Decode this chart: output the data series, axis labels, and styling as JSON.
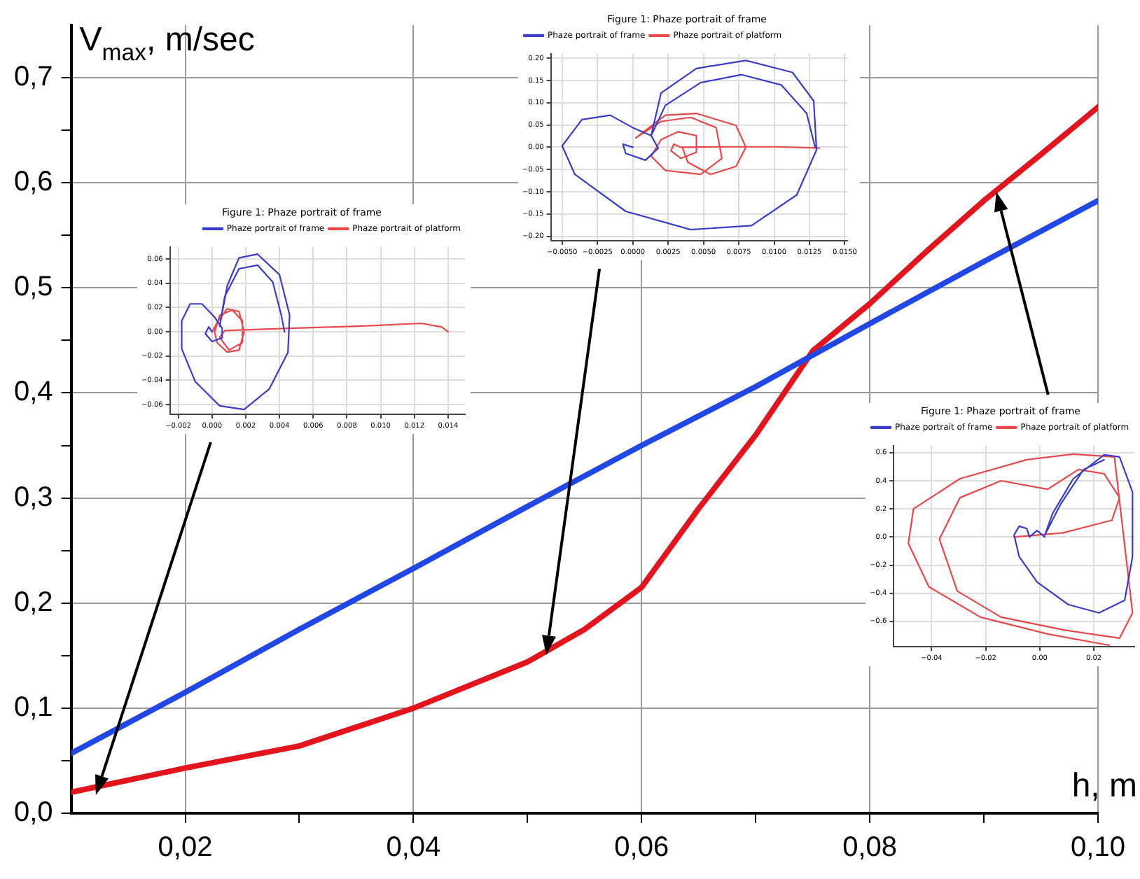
{
  "chart_data": [
    {
      "type": "line",
      "xlabel": "h, m",
      "ylabel": "V$_{max}$, m/sec",
      "xlim": [
        0.01,
        0.1
      ],
      "ylim": [
        0,
        0.75
      ],
      "xticks": [
        {
          "value": 0.02,
          "label": "0,02"
        },
        {
          "value": 0.03,
          "label": null
        },
        {
          "value": 0.04,
          "label": "0,04"
        },
        {
          "value": 0.05,
          "label": null
        },
        {
          "value": 0.06,
          "label": "0,06"
        },
        {
          "value": 0.07,
          "label": null
        },
        {
          "value": 0.08,
          "label": "0,08"
        },
        {
          "value": 0.09,
          "label": null
        },
        {
          "value": 0.1,
          "label": "0,10"
        }
      ],
      "yticks": [
        {
          "value": 0,
          "label": "0,0"
        },
        {
          "value": 0.05,
          "label": null
        },
        {
          "value": 0.1,
          "label": "0,1"
        },
        {
          "value": 0.15,
          "label": null
        },
        {
          "value": 0.2,
          "label": "0,2"
        },
        {
          "value": 0.25,
          "label": null
        },
        {
          "value": 0.3,
          "label": "0,3"
        },
        {
          "value": 0.35,
          "label": null
        },
        {
          "value": 0.4,
          "label": "0,4"
        },
        {
          "value": 0.45,
          "label": null
        },
        {
          "value": 0.5,
          "label": "0,5"
        },
        {
          "value": 0.55,
          "label": null
        },
        {
          "value": 0.6,
          "label": "0,6"
        },
        {
          "value": 0.65,
          "label": null
        },
        {
          "value": 0.7,
          "label": "0,7"
        }
      ],
      "grid": true,
      "marker": "none",
      "line_style": "solid",
      "series": [
        {
          "color": "#2147e6",
          "x": [
            0.01,
            0.02,
            0.03,
            0.04,
            0.05,
            0.06,
            0.07,
            0.08,
            0.09,
            0.1
          ],
          "values": [
            0.057,
            0.115,
            0.175,
            0.233,
            0.292,
            0.35,
            0.406,
            0.466,
            0.525,
            0.583
          ]
        },
        {
          "color": "#e3141c",
          "x": [
            0.01,
            0.02,
            0.03,
            0.04,
            0.05,
            0.055,
            0.06,
            0.065,
            0.07,
            0.075,
            0.08,
            0.085,
            0.09,
            0.095,
            0.1
          ],
          "values": [
            0.02,
            0.043,
            0.064,
            0.1,
            0.144,
            0.175,
            0.215,
            0.29,
            0.36,
            0.44,
            0.485,
            0.535,
            0.583,
            0.627,
            0.672
          ]
        }
      ]
    },
    {
      "type": "line",
      "title": "Figure 1: Phaze portrait of frame",
      "legend": "top right",
      "grid": true,
      "marker": "none",
      "line_style": "solid",
      "xlim": [
        -0.0025,
        0.015
      ],
      "ylim": [
        -0.068,
        0.07
      ],
      "xticks": [
        {
          "value": -0.002,
          "label": "−0.002"
        },
        {
          "value": 0,
          "label": "0.000"
        },
        {
          "value": 0.002,
          "label": "0.002"
        },
        {
          "value": 0.004,
          "label": "0.004"
        },
        {
          "value": 0.006,
          "label": "0.006"
        },
        {
          "value": 0.008,
          "label": "0.008"
        },
        {
          "value": 0.01,
          "label": "0.010"
        },
        {
          "value": 0.012,
          "label": "0.012"
        },
        {
          "value": 0.014,
          "label": "0.014"
        }
      ],
      "yticks": [
        {
          "value": -0.06,
          "label": "−0.06"
        },
        {
          "value": -0.04,
          "label": "−0.04"
        },
        {
          "value": -0.02,
          "label": "−0.02"
        },
        {
          "value": 0,
          "label": "0.00"
        },
        {
          "value": 0.02,
          "label": "0.02"
        },
        {
          "value": 0.04,
          "label": "0.04"
        },
        {
          "value": 0.06,
          "label": "0.06"
        }
      ],
      "series": [
        {
          "name": "Phaze portrait of frame",
          "color": "#3a3ccc",
          "x": [
            0,
            -0.0002,
            -0.0004,
            0,
            0.0006,
            0.0006,
            0.00015,
            -0.0006,
            -0.0013,
            -0.0018,
            -0.0018,
            -0.001,
            0.00045,
            0.0019,
            0.0034,
            0.0045,
            0.0046,
            0.004,
            0.0027,
            0.0016,
            0.0009,
            0.00045,
            0.00075,
            0.0016,
            0.0027,
            0.0036,
            0.0041,
            0.0043
          ],
          "values": [
            0,
            0.004,
            -0.0015,
            -0.008,
            -0.005,
            0.003,
            0.012,
            0.023,
            0.023,
            0.009,
            -0.014,
            -0.041,
            -0.061,
            -0.064,
            -0.047,
            -0.017,
            0.014,
            0.047,
            0.064,
            0.061,
            0.038,
            0.0045,
            0.029,
            0.052,
            0.055,
            0.041,
            0.014,
            0
          ]
        },
        {
          "name": "Phaze portrait of platform",
          "color": "#e8484a",
          "x": [
            0,
            0.0003,
            0.0009,
            0.0016,
            0.0019,
            0.0016,
            0.0009,
            0.0003,
            0.00015,
            0.00045,
            0.0012,
            0.0018,
            0.0018,
            0.001,
            0.00045,
            0.00075,
            0.0049,
            0.0094,
            0.0124,
            0.0136,
            0.014
          ],
          "values": [
            0,
            0.0076,
            0.019,
            0.0167,
            0,
            -0.015,
            -0.0167,
            -0.009,
            0,
            0.0136,
            0.018,
            0.009,
            -0.009,
            -0.015,
            -0.0045,
            0.001,
            0.003,
            0.005,
            0.007,
            0.004,
            0
          ]
        }
      ]
    },
    {
      "type": "line",
      "title": "Figure 1: Phaze portrait of frame",
      "legend": "top left",
      "grid": true,
      "marker": "none",
      "line_style": "solid",
      "xlim": [
        -0.0058,
        0.0152
      ],
      "ylim": [
        -0.21,
        0.21
      ],
      "xticks": [
        {
          "value": -0.005,
          "label": "−0.0050"
        },
        {
          "value": -0.0025,
          "label": "−0.0025"
        },
        {
          "value": 0,
          "label": "0.0000"
        },
        {
          "value": 0.0025,
          "label": "0.0025"
        },
        {
          "value": 0.005,
          "label": "0.0050"
        },
        {
          "value": 0.0075,
          "label": "0.0075"
        },
        {
          "value": 0.01,
          "label": "0.0100"
        },
        {
          "value": 0.0125,
          "label": "0.0125"
        },
        {
          "value": 0.015,
          "label": "0.0150"
        }
      ],
      "yticks": [
        {
          "value": -0.2,
          "label": "−0.20"
        },
        {
          "value": -0.15,
          "label": "−0.15"
        },
        {
          "value": -0.1,
          "label": "−0.10"
        },
        {
          "value": -0.05,
          "label": "−0.05"
        },
        {
          "value": 0,
          "label": "0.00"
        },
        {
          "value": 0.05,
          "label": "0.05"
        },
        {
          "value": 0.1,
          "label": "0.10"
        },
        {
          "value": 0.15,
          "label": "0.15"
        },
        {
          "value": 0.2,
          "label": "0.20"
        }
      ],
      "series": [
        {
          "name": "Phaze portrait of frame",
          "color": "#3a3ccc",
          "x": [
            0,
            -0.0007,
            -0.0005,
            0.0009,
            0.0018,
            0.0013,
            0,
            -0.0016,
            -0.0036,
            -0.005,
            -0.0041,
            -0.0005,
            0.0041,
            0.0084,
            0.0116,
            0.013,
            0.0128,
            0.0113,
            0.008,
            0.0045,
            0.002,
            0.0013,
            0.0023,
            0.0048,
            0.0077,
            0.0105,
            0.0123,
            0.0129
          ],
          "values": [
            0,
            0.007,
            -0.014,
            -0.029,
            -0.002,
            0.026,
            0.044,
            0.072,
            0.062,
            0.003,
            -0.061,
            -0.144,
            -0.185,
            -0.176,
            -0.107,
            -0.006,
            0.104,
            0.168,
            0.195,
            0.177,
            0.122,
            0.026,
            0.094,
            0.145,
            0.163,
            0.14,
            0.076,
            0
          ]
        },
        {
          "name": "Phaze portrait of platform",
          "color": "#e8484a",
          "x": [
            0.0034,
            0.0029,
            0.0027,
            0.0034,
            0.0045,
            0.0045,
            0.0032,
            0.002,
            0.0013,
            0.0023,
            0.0048,
            0.0063,
            0.0059,
            0.0041,
            0.002,
            0.0002,
            0.0023,
            0.0045,
            0.0073,
            0.008,
            0.0073,
            0.0055,
            0.0039,
            0.0035,
            0.0066,
            0.0102,
            0.0132
          ],
          "values": [
            0,
            0.007,
            -0.008,
            -0.025,
            -0.011,
            0.026,
            0.035,
            0.017,
            -0.02,
            -0.052,
            -0.061,
            -0.025,
            0.044,
            0.067,
            0.058,
            0.021,
            0.072,
            0.076,
            0.049,
            0,
            -0.043,
            -0.061,
            -0.034,
            0,
            0.001,
            0.001,
            -0.002
          ]
        }
      ]
    },
    {
      "type": "line",
      "title": "Figure 1: Phaze portrait of frame",
      "legend": "top left",
      "grid": true,
      "marker": "none",
      "line_style": "solid",
      "xlim": [
        -0.054,
        0.035
      ],
      "ylim": [
        -0.78,
        0.65
      ],
      "xticks": [
        {
          "value": -0.04,
          "label": "−0.04"
        },
        {
          "value": -0.02,
          "label": "−0.02"
        },
        {
          "value": 0,
          "label": "0.00"
        },
        {
          "value": 0.02,
          "label": "0.02"
        }
      ],
      "yticks": [
        {
          "value": -0.6,
          "label": "−0.6"
        },
        {
          "value": -0.4,
          "label": "−0.4"
        },
        {
          "value": -0.2,
          "label": "−0.2"
        },
        {
          "value": 0,
          "label": "0.0"
        },
        {
          "value": 0.2,
          "label": "0.2"
        },
        {
          "value": 0.4,
          "label": "0.4"
        },
        {
          "value": 0.6,
          "label": "0.6"
        }
      ],
      "series": [
        {
          "name": "Phaze portrait of frame",
          "color": "#3a3ccc",
          "x": [
            0.0019,
            -0.001,
            -0.0038,
            -0.0048,
            -0.0076,
            -0.0095,
            -0.0076,
            -0.001,
            0.0105,
            0.0219,
            0.0314,
            0.0343,
            0.0343,
            0.0295,
            0.0238,
            0.0124,
            0.0048,
            0.0019,
            0.0076,
            0.0162,
            0.0238
          ],
          "values": [
            0,
            0.046,
            0,
            0.06,
            0.077,
            0.015,
            -0.14,
            -0.32,
            -0.48,
            -0.54,
            -0.45,
            -0.14,
            0.32,
            0.57,
            0.585,
            0.415,
            0.17,
            0.015,
            0.23,
            0.48,
            0.55
          ]
        },
        {
          "name": "Phaze portrait of platform",
          "color": "#e8484a",
          "x": [
            -0.0095,
            0.0086,
            0.0267,
            0.0295,
            0.0238,
            0.0143,
            0.0029,
            -0.0143,
            -0.0295,
            -0.0371,
            -0.0305,
            -0.0143,
            0.0086,
            0.0295,
            0.0343,
            0.0276,
            0.0124,
            -0.0048,
            -0.0295,
            -0.0467,
            -0.0486,
            -0.041,
            -0.0219,
            0.0029,
            0.0257
          ],
          "values": [
            0,
            0.03,
            0.12,
            0.28,
            0.45,
            0.48,
            0.34,
            0.4,
            0.28,
            -0.015,
            -0.385,
            -0.57,
            -0.66,
            -0.72,
            -0.54,
            0.57,
            0.59,
            0.55,
            0.415,
            0.2,
            -0.046,
            -0.354,
            -0.57,
            -0.69,
            -0.77
          ]
        }
      ]
    }
  ]
}
